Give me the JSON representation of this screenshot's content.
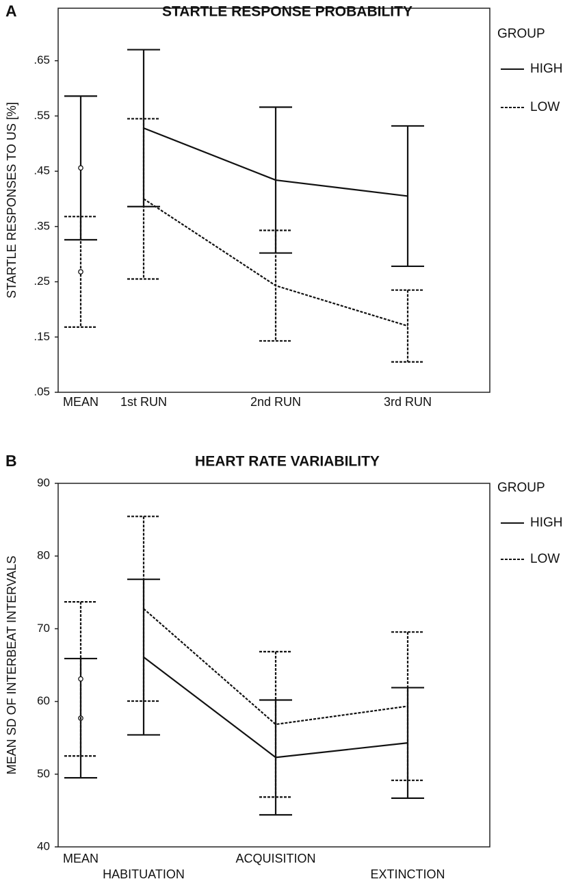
{
  "chart_data": [
    {
      "type": "line",
      "panel_label": "A",
      "title": "STARTLE RESPONSE PROBABILITY",
      "ylabel": "STARTLE RESPONSES TO US [%]",
      "legend_title": "GROUP",
      "categories": [
        "MEAN",
        "1st RUN",
        "2nd RUN",
        "3rd RUN"
      ],
      "ylim": [
        0.05,
        0.745
      ],
      "yticks": [
        {
          "value": 0.05,
          "label": ".05"
        },
        {
          "value": 0.15,
          "label": ".15"
        },
        {
          "value": 0.25,
          "label": ".25"
        },
        {
          "value": 0.35,
          "label": ".35"
        },
        {
          "value": 0.45,
          "label": ".45"
        },
        {
          "value": 0.55,
          "label": ".55"
        },
        {
          "value": 0.65,
          "label": ".65"
        }
      ],
      "series": [
        {
          "name": "HIGH",
          "color": "#111111",
          "dash": "solid",
          "values": [
            0.456,
            0.528,
            0.434,
            0.405
          ],
          "errors": [
            0.13,
            0.142,
            0.132,
            0.127
          ]
        },
        {
          "name": "LOW",
          "color": "#111111",
          "dash": "dotted",
          "values": [
            0.268,
            0.4,
            0.243,
            0.17
          ],
          "errors": [
            0.1,
            0.145,
            0.1,
            0.065
          ]
        }
      ]
    },
    {
      "type": "line",
      "panel_label": "B",
      "title": "HEART RATE VARIABILITY",
      "ylabel": "MEAN SD OF INTERBEAT INTERVALS",
      "legend_title": "GROUP",
      "categories": [
        "MEAN",
        "HABITUATION",
        "ACQUISITION",
        "EXTINCTION"
      ],
      "ylim": [
        40,
        90
      ],
      "yticks": [
        40,
        50,
        60,
        70,
        80,
        90
      ],
      "series": [
        {
          "name": "HIGH",
          "color": "#111111",
          "dash": "solid",
          "values": [
            57.7,
            66.1,
            52.3,
            54.3
          ],
          "errors": [
            8.2,
            10.7,
            7.9,
            7.6
          ]
        },
        {
          "name": "LOW",
          "color": "#111111",
          "dash": "dotted",
          "values": [
            63.1,
            72.75,
            56.85,
            59.35
          ],
          "errors": [
            10.6,
            12.7,
            10,
            10.2
          ]
        }
      ]
    }
  ]
}
